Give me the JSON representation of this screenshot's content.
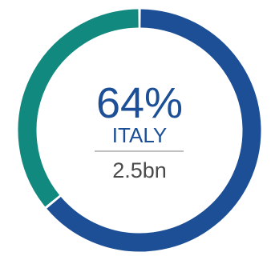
{
  "chart_data": {
    "type": "pie",
    "style": "donut",
    "slices": [
      {
        "value": 64,
        "color": "#1d4f96"
      },
      {
        "value": 36,
        "color": "#12897f"
      }
    ],
    "center": {
      "percent_label": "64%",
      "country": "ITALY",
      "amount": "2.5bn"
    }
  },
  "colors": {
    "primary_text": "#1d4f96",
    "secondary_text": "#4a4a4a",
    "divider": "#9a9a9a"
  }
}
